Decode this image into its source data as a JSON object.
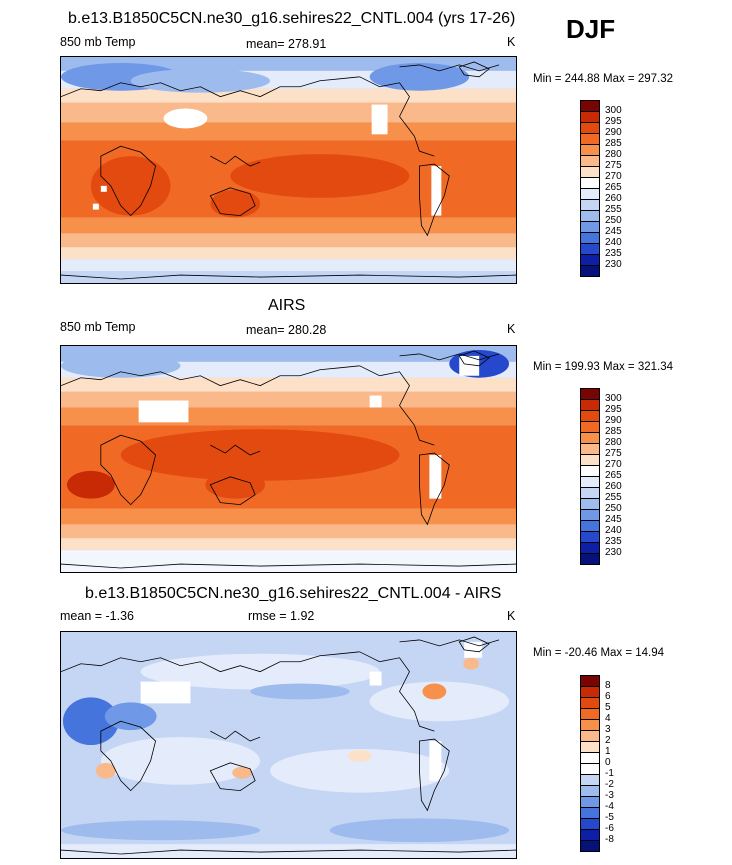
{
  "season": "DJF",
  "panels": [
    {
      "id": "model",
      "title": "b.e13.B1850C5CN.ne30_g16.sehires22_CNTL.004 (yrs 17-26)",
      "left_label": "850 mb Temp",
      "center_label": "mean= 278.91",
      "units": "K",
      "range_text": "Min = 244.88 Max = 297.32",
      "colorbar": {
        "labels": [
          "300",
          "295",
          "290",
          "285",
          "280",
          "275",
          "270",
          "265",
          "260",
          "255",
          "250",
          "245",
          "240",
          "235",
          "230"
        ],
        "colors": [
          "#7a0403",
          "#c82a06",
          "#e34a10",
          "#f16a25",
          "#f7904a",
          "#fab98b",
          "#fde0c8",
          "#ffffff",
          "#e4ecfb",
          "#c5d6f5",
          "#9ebbee",
          "#6f98e6",
          "#4574dd",
          "#2548cc",
          "#0c1fa6",
          "#06127a"
        ]
      }
    },
    {
      "id": "obs",
      "title": "AIRS",
      "left_label": "850 mb Temp",
      "center_label": "mean= 280.28",
      "units": "K",
      "range_text": "Min = 199.93 Max = 321.34",
      "colorbar": {
        "labels": [
          "300",
          "295",
          "290",
          "285",
          "280",
          "275",
          "270",
          "265",
          "260",
          "255",
          "250",
          "245",
          "240",
          "235",
          "230"
        ],
        "colors": [
          "#7a0403",
          "#c82a06",
          "#e34a10",
          "#f16a25",
          "#f7904a",
          "#fab98b",
          "#fde0c8",
          "#ffffff",
          "#e4ecfb",
          "#c5d6f5",
          "#9ebbee",
          "#6f98e6",
          "#4574dd",
          "#2548cc",
          "#0c1fa6",
          "#06127a"
        ]
      }
    },
    {
      "id": "diff",
      "title": "b.e13.B1850C5CN.ne30_g16.sehires22_CNTL.004 - AIRS",
      "left_label": "mean =  -1.36",
      "center_label": "rmse =   1.92",
      "units": "K",
      "range_text": "Min = -20.46 Max =  14.94",
      "colorbar": {
        "labels": [
          "8",
          "6",
          "5",
          "4",
          "3",
          "2",
          "1",
          "0",
          "-1",
          "-2",
          "-3",
          "-4",
          "-5",
          "-6",
          "-8"
        ],
        "colors": [
          "#7a0403",
          "#c82a06",
          "#e34a10",
          "#f16a25",
          "#f7904a",
          "#fab98b",
          "#fde0c8",
          "#ffffff",
          "#ffffff",
          "#c5d6f5",
          "#9ebbee",
          "#6f98e6",
          "#4574dd",
          "#2548cc",
          "#0c1fa6",
          "#06127a"
        ]
      }
    }
  ]
}
